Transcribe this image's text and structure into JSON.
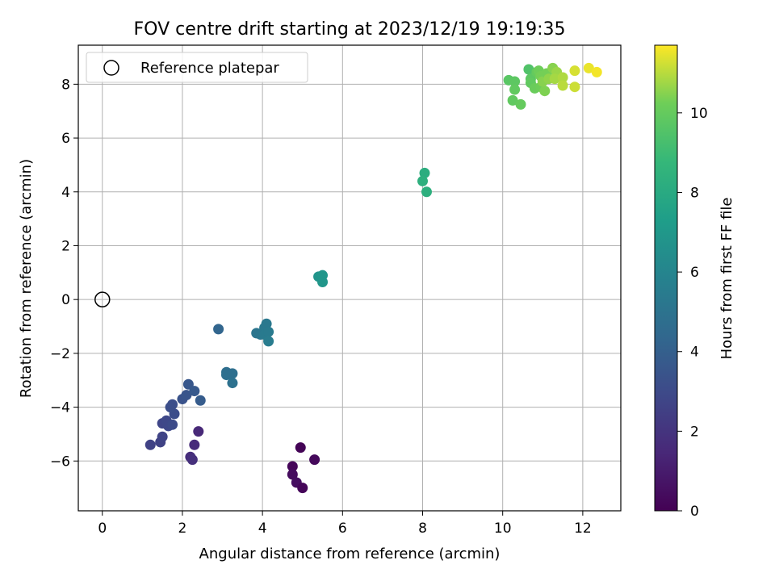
{
  "chart_data": {
    "type": "scatter",
    "title": "FOV centre drift starting at 2023/12/19 19:19:35",
    "xlabel": "Angular distance from reference (arcmin)",
    "ylabel": "Rotation from reference (arcmin)",
    "xlim": [
      -0.6,
      12.95
    ],
    "ylim": [
      -7.85,
      9.45
    ],
    "xticks": [
      0,
      2,
      4,
      6,
      8,
      10,
      12
    ],
    "xtick_labels": [
      "0",
      "2",
      "4",
      "6",
      "8",
      "10",
      "12"
    ],
    "yticks": [
      -6,
      -4,
      -2,
      0,
      2,
      4,
      6,
      8
    ],
    "ytick_labels": [
      "−6",
      "−4",
      "−2",
      "0",
      "2",
      "4",
      "6",
      "8"
    ],
    "grid": true,
    "legend": {
      "placement": "top-left",
      "entries": [
        "Reference platepar"
      ]
    },
    "reference_point": {
      "x": 0,
      "y": 0,
      "marker": "open-circle",
      "color": "#000000"
    },
    "colorbar": {
      "label": "Hours from first FF file",
      "colormap": "viridis",
      "range": [
        0,
        11.7
      ],
      "ticks": [
        0,
        2,
        4,
        6,
        8,
        10
      ],
      "tick_labels": [
        "0",
        "2",
        "4",
        "6",
        "8",
        "10"
      ]
    },
    "points": [
      {
        "x": 4.95,
        "y": -5.5,
        "t": 0.1
      },
      {
        "x": 5.3,
        "y": -5.95,
        "t": 0.3
      },
      {
        "x": 4.75,
        "y": -6.2,
        "t": 0.2
      },
      {
        "x": 4.75,
        "y": -6.5,
        "t": 0.4
      },
      {
        "x": 4.85,
        "y": -6.8,
        "t": 0.5
      },
      {
        "x": 5.0,
        "y": -7.0,
        "t": 0.2
      },
      {
        "x": 2.4,
        "y": -4.9,
        "t": 1.5
      },
      {
        "x": 2.3,
        "y": -5.4,
        "t": 1.6
      },
      {
        "x": 2.2,
        "y": -5.85,
        "t": 1.7
      },
      {
        "x": 2.25,
        "y": -5.95,
        "t": 1.8
      },
      {
        "x": 1.2,
        "y": -5.4,
        "t": 2.6
      },
      {
        "x": 1.45,
        "y": -5.3,
        "t": 2.6
      },
      {
        "x": 1.5,
        "y": -5.1,
        "t": 2.7
      },
      {
        "x": 1.5,
        "y": -4.6,
        "t": 2.8
      },
      {
        "x": 1.6,
        "y": -4.5,
        "t": 2.9
      },
      {
        "x": 1.65,
        "y": -4.7,
        "t": 2.9
      },
      {
        "x": 1.75,
        "y": -4.65,
        "t": 3.0
      },
      {
        "x": 1.8,
        "y": -4.25,
        "t": 3.1
      },
      {
        "x": 1.7,
        "y": -4.0,
        "t": 3.2
      },
      {
        "x": 1.75,
        "y": -3.9,
        "t": 3.2
      },
      {
        "x": 2.0,
        "y": -3.7,
        "t": 3.4
      },
      {
        "x": 2.1,
        "y": -3.55,
        "t": 3.5
      },
      {
        "x": 2.15,
        "y": -3.15,
        "t": 3.6
      },
      {
        "x": 2.3,
        "y": -3.4,
        "t": 3.7
      },
      {
        "x": 2.45,
        "y": -3.75,
        "t": 3.8
      },
      {
        "x": 2.9,
        "y": -1.1,
        "t": 4.3
      },
      {
        "x": 3.1,
        "y": -2.7,
        "t": 4.7
      },
      {
        "x": 3.1,
        "y": -2.8,
        "t": 4.8
      },
      {
        "x": 3.25,
        "y": -2.75,
        "t": 4.8
      },
      {
        "x": 3.25,
        "y": -3.1,
        "t": 4.9
      },
      {
        "x": 3.85,
        "y": -1.25,
        "t": 5.1
      },
      {
        "x": 3.95,
        "y": -1.3,
        "t": 5.2
      },
      {
        "x": 4.05,
        "y": -1.05,
        "t": 5.3
      },
      {
        "x": 4.1,
        "y": -0.9,
        "t": 5.3
      },
      {
        "x": 4.05,
        "y": -1.3,
        "t": 5.4
      },
      {
        "x": 4.15,
        "y": -1.2,
        "t": 5.4
      },
      {
        "x": 4.15,
        "y": -1.55,
        "t": 5.5
      },
      {
        "x": 5.4,
        "y": 0.85,
        "t": 6.8
      },
      {
        "x": 5.5,
        "y": 0.9,
        "t": 6.9
      },
      {
        "x": 5.5,
        "y": 0.65,
        "t": 6.9
      },
      {
        "x": 8.05,
        "y": 4.7,
        "t": 8.2
      },
      {
        "x": 8.0,
        "y": 4.4,
        "t": 8.3
      },
      {
        "x": 8.1,
        "y": 4.0,
        "t": 8.3
      },
      {
        "x": 10.15,
        "y": 8.15,
        "t": 9.7
      },
      {
        "x": 10.3,
        "y": 8.1,
        "t": 9.8
      },
      {
        "x": 10.3,
        "y": 7.8,
        "t": 9.9
      },
      {
        "x": 10.25,
        "y": 7.4,
        "t": 9.9
      },
      {
        "x": 10.45,
        "y": 7.25,
        "t": 10.0
      },
      {
        "x": 10.65,
        "y": 8.55,
        "t": 9.5
      },
      {
        "x": 10.7,
        "y": 8.2,
        "t": 9.8
      },
      {
        "x": 10.7,
        "y": 8.05,
        "t": 9.9
      },
      {
        "x": 10.8,
        "y": 7.85,
        "t": 10.1
      },
      {
        "x": 10.85,
        "y": 8.45,
        "t": 10.0
      },
      {
        "x": 10.9,
        "y": 8.5,
        "t": 10.2
      },
      {
        "x": 10.95,
        "y": 8.3,
        "t": 10.3
      },
      {
        "x": 10.95,
        "y": 7.9,
        "t": 10.2
      },
      {
        "x": 11.05,
        "y": 7.75,
        "t": 10.4
      },
      {
        "x": 11.0,
        "y": 8.1,
        "t": 10.5
      },
      {
        "x": 11.1,
        "y": 8.4,
        "t": 10.3
      },
      {
        "x": 11.15,
        "y": 8.2,
        "t": 10.6
      },
      {
        "x": 11.25,
        "y": 8.6,
        "t": 10.5
      },
      {
        "x": 11.35,
        "y": 8.45,
        "t": 10.7
      },
      {
        "x": 11.3,
        "y": 8.2,
        "t": 10.8
      },
      {
        "x": 11.5,
        "y": 8.25,
        "t": 10.9
      },
      {
        "x": 11.5,
        "y": 7.95,
        "t": 11.0
      },
      {
        "x": 11.8,
        "y": 8.5,
        "t": 11.3
      },
      {
        "x": 11.8,
        "y": 7.9,
        "t": 11.2
      },
      {
        "x": 12.15,
        "y": 8.6,
        "t": 11.5
      },
      {
        "x": 12.35,
        "y": 8.45,
        "t": 11.6
      }
    ]
  }
}
